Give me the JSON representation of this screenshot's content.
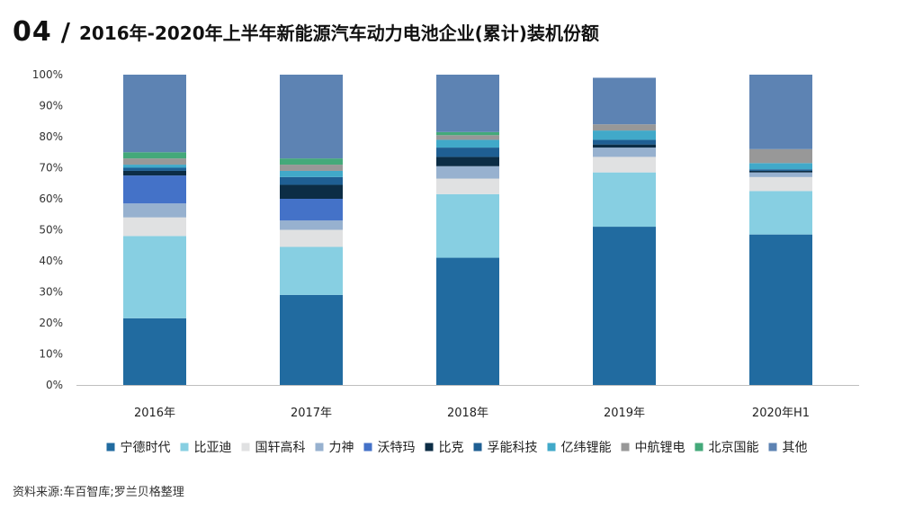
{
  "header": {
    "section_number": "04",
    "slash": "/",
    "title": "2016年-2020年上半年新能源汽车动力电池企业(累计)装机份额"
  },
  "source": "资料来源:车百智库;罗兰贝格整理",
  "chart_data": {
    "type": "bar",
    "stacked": true,
    "title": "2016年-2020年上半年新能源汽车动力电池企业(累计)装机份额",
    "xlabel": "",
    "ylabel": "",
    "ylim": [
      0,
      100
    ],
    "y_ticks": [
      "0%",
      "10%",
      "20%",
      "30%",
      "40%",
      "50%",
      "60%",
      "70%",
      "80%",
      "90%",
      "100%"
    ],
    "categories": [
      "2016年",
      "2017年",
      "2018年",
      "2019年",
      "2020年H1"
    ],
    "series": [
      {
        "name": "宁德时代",
        "color": "#216ba0",
        "values": [
          21.5,
          29.0,
          41.0,
          51.0,
          48.5
        ]
      },
      {
        "name": "比亚迪",
        "color": "#87cfe2",
        "values": [
          26.5,
          15.5,
          20.5,
          17.5,
          14.0
        ]
      },
      {
        "name": "国轩高科",
        "color": "#e0e1e2",
        "values": [
          6.0,
          5.5,
          5.0,
          5.0,
          4.5
        ]
      },
      {
        "name": "力神",
        "color": "#97b1cf",
        "values": [
          4.5,
          3.0,
          4.0,
          3.0,
          1.5
        ]
      },
      {
        "name": "沃特玛",
        "color": "#4472c8",
        "values": [
          9.0,
          7.0,
          0.0,
          0.0,
          0.0
        ]
      },
      {
        "name": "比克",
        "color": "#0c2d45",
        "values": [
          1.5,
          4.5,
          3.0,
          1.0,
          0.5
        ]
      },
      {
        "name": "孚能科技",
        "color": "#1f5f93",
        "values": [
          1.0,
          2.5,
          3.0,
          1.5,
          0.5
        ]
      },
      {
        "name": "亿纬锂能",
        "color": "#41a9c9",
        "values": [
          1.0,
          2.0,
          2.5,
          3.0,
          2.0
        ]
      },
      {
        "name": "中航锂电",
        "color": "#989898",
        "values": [
          2.0,
          2.0,
          1.5,
          2.0,
          4.5
        ]
      },
      {
        "name": "北京国能",
        "color": "#44a97a",
        "values": [
          2.0,
          2.0,
          1.0,
          0.0,
          0.0
        ]
      },
      {
        "name": "其他",
        "color": "#5d83b3",
        "values": [
          25.0,
          27.0,
          18.5,
          15.0,
          24.0
        ]
      }
    ],
    "legend_position": "bottom",
    "grid": false
  }
}
